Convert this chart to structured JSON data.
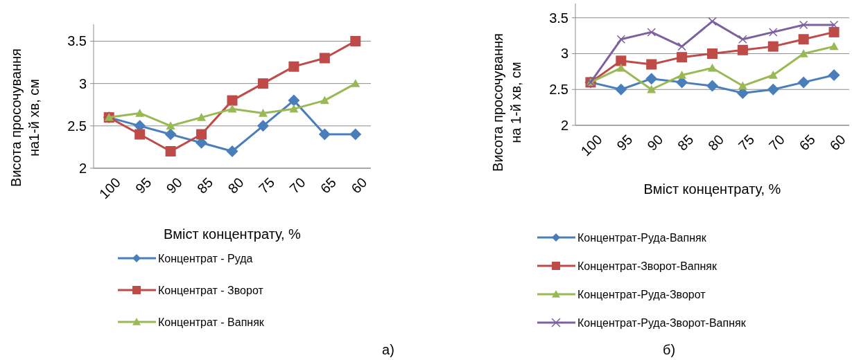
{
  "chart_data": [
    {
      "type": "line",
      "xlabel": "Вміст концентрату, %",
      "ylabel": "Висота просочування\nна1-й хв, см",
      "categories": [
        "100",
        "95",
        "90",
        "85",
        "80",
        "75",
        "70",
        "65",
        "60"
      ],
      "ylim": [
        2,
        3.7
      ],
      "yticks": [
        2,
        2.5,
        3,
        3.5
      ],
      "grid": "y",
      "legend": "bottom",
      "annotations": [
        "а)"
      ],
      "series": [
        {
          "name": "Концентрат - Руда",
          "color": "#4a7ebb",
          "marker": "diamond",
          "values": [
            2.6,
            2.5,
            2.4,
            2.3,
            2.2,
            2.5,
            2.8,
            2.4,
            2.4
          ]
        },
        {
          "name": "Концентрат - Зворот",
          "color": "#be4b48",
          "marker": "square",
          "values": [
            2.6,
            2.4,
            2.2,
            2.4,
            2.8,
            3.0,
            3.2,
            3.3,
            3.5
          ]
        },
        {
          "name": "Концентрат - Вапняк",
          "color": "#98b954",
          "marker": "triangle",
          "values": [
            2.6,
            2.65,
            2.5,
            2.6,
            2.7,
            2.65,
            2.7,
            2.8,
            3.0
          ]
        }
      ]
    },
    {
      "type": "line",
      "xlabel": "Вміст концентрату, %",
      "ylabel": "Висота просочування\nна 1-й хв, см",
      "categories": [
        "100",
        "95",
        "90",
        "85",
        "80",
        "75",
        "70",
        "65",
        "60"
      ],
      "ylim": [
        2,
        3.7
      ],
      "yticks": [
        2,
        2.5,
        3,
        3.5
      ],
      "grid": "y",
      "legend": "bottom",
      "annotations": [
        "б)"
      ],
      "series": [
        {
          "name": "Концентрат-Руда-Вапняк",
          "color": "#4a7ebb",
          "marker": "diamond",
          "values": [
            2.6,
            2.5,
            2.65,
            2.6,
            2.55,
            2.45,
            2.5,
            2.6,
            2.7
          ]
        },
        {
          "name": "Концентрат-Зворот-Вапняк",
          "color": "#be4b48",
          "marker": "square",
          "values": [
            2.6,
            2.9,
            2.85,
            2.95,
            3.0,
            3.05,
            3.1,
            3.2,
            3.3
          ]
        },
        {
          "name": "Концентрат-Руда-Зворот",
          "color": "#98b954",
          "marker": "triangle",
          "values": [
            2.6,
            2.8,
            2.5,
            2.7,
            2.8,
            2.55,
            2.7,
            3.0,
            3.1
          ]
        },
        {
          "name": "Концентрат-Руда-Зворот-Вапняк",
          "color": "#7d60a0",
          "marker": "cross",
          "values": [
            2.6,
            3.2,
            3.3,
            3.1,
            3.45,
            3.2,
            3.3,
            3.4,
            3.4
          ]
        }
      ]
    }
  ]
}
